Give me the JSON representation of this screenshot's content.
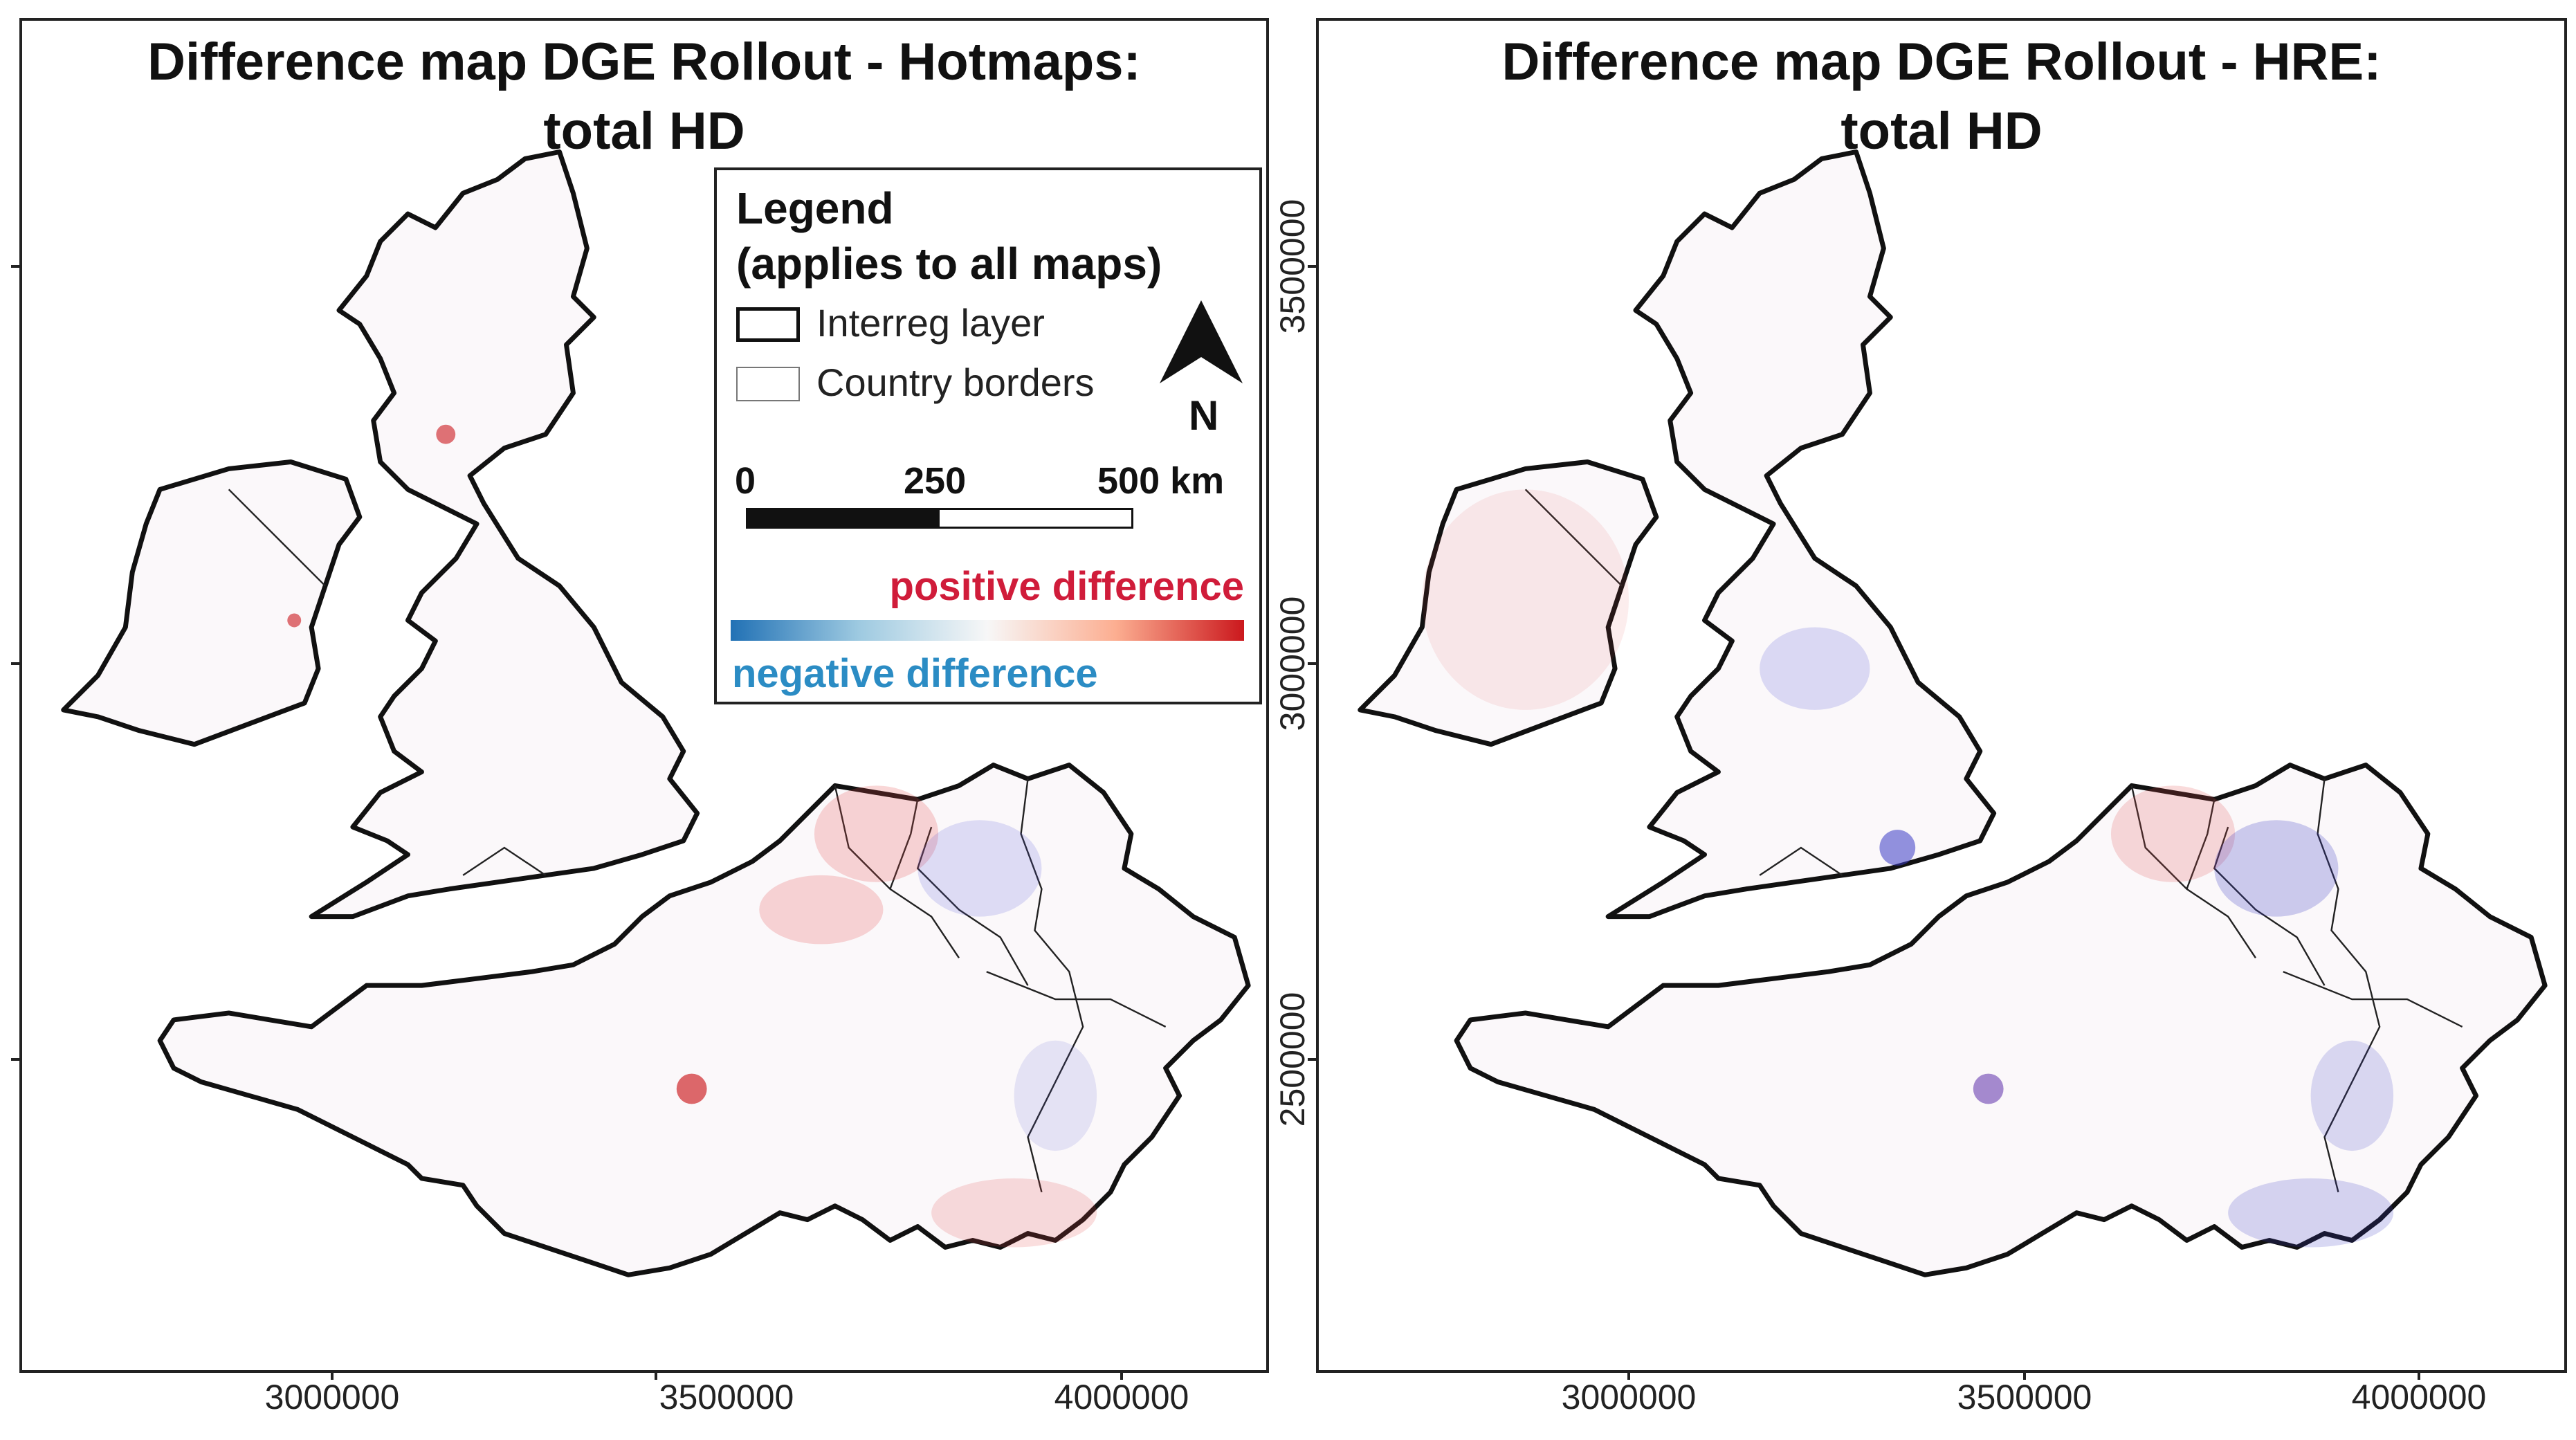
{
  "maps": [
    {
      "title_line1": "Difference map DGE Rollout - Hotmaps:",
      "title_line2": "total HD"
    },
    {
      "title_line1": "Difference map DGE Rollout - HRE:",
      "title_line2": "total HD"
    }
  ],
  "x_axis_ticks": [
    "3000000",
    "3500000",
    "4000000"
  ],
  "y_axis_ticks": [
    "3500000",
    "3000000",
    "2500000"
  ],
  "legend": {
    "title_line1": "Legend",
    "title_line2": "(applies to all maps)",
    "interreg_label": "Interreg layer",
    "country_label": "Country borders",
    "north_label": "N",
    "scale_labels": [
      "0",
      "250",
      "500 km"
    ],
    "positive_label": "positive difference",
    "negative_label": "negative difference",
    "positive_color": "#d01c3a",
    "negative_color": "#2b8cc4",
    "ramp_colors": [
      "#2171b5",
      "#9ecae1",
      "#f7f7f7",
      "#fcae91",
      "#cb181d"
    ]
  }
}
